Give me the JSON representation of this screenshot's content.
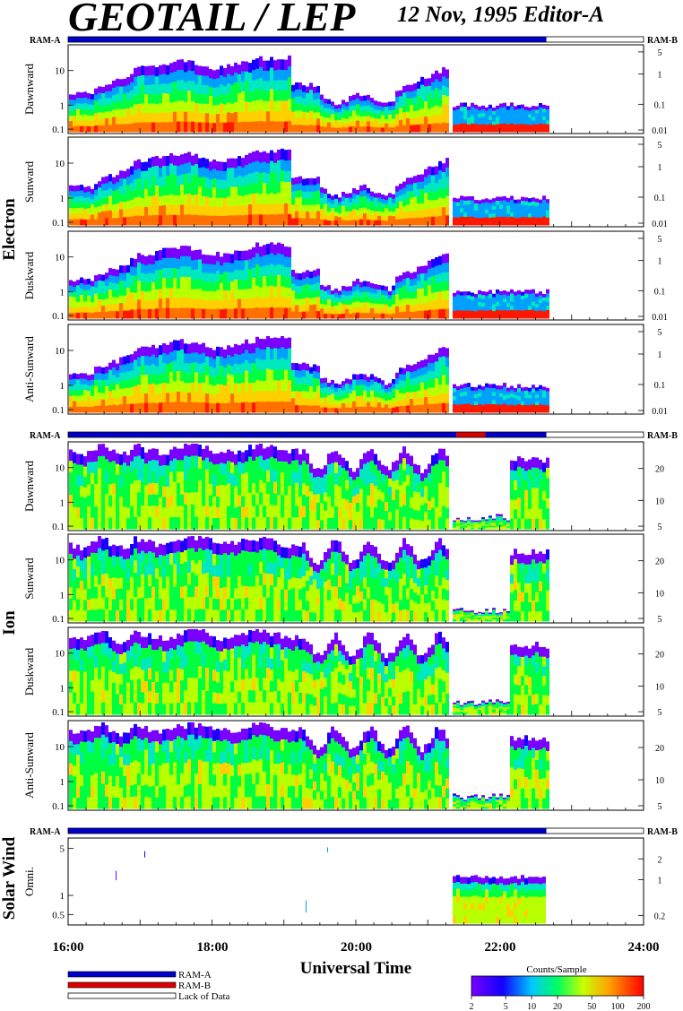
{
  "header": {
    "title": "GEOTAIL / LEP",
    "subtitle": "12 Nov, 1995   Editor-A"
  },
  "status_labels": {
    "ram_a": "RAM-A",
    "ram_b": "RAM-B"
  },
  "legend": {
    "ram_a": "RAM-A",
    "ram_b": "RAM-B",
    "lack": "Lack of Data"
  },
  "colorbar": {
    "title": "Counts/Sample",
    "ticks": [
      "2",
      "5",
      "10",
      "20",
      "50",
      "100",
      "200"
    ],
    "tick_values": [
      2,
      5,
      10,
      20,
      50,
      100,
      200
    ],
    "range": [
      2,
      200
    ],
    "scale": "log"
  },
  "colors": {
    "ram_a": "#0000cc",
    "ram_b": "#dd0000",
    "lack": "#ffffff"
  },
  "chart_data": {
    "type": "heatmap",
    "x": {
      "label": "Universal Time",
      "ticks": [
        "16:00",
        "18:00",
        "20:00",
        "22:00",
        "24:00"
      ],
      "tick_values": [
        16,
        18,
        20,
        22,
        24
      ],
      "range": [
        16,
        24
      ],
      "data_end": 22.65,
      "gap": [
        21.25,
        21.3
      ]
    },
    "groups": [
      {
        "name": "Electron",
        "panels": [
          {
            "label": "Dawnward",
            "left_ticks": [
              "10",
              "1",
              "0.1"
            ],
            "right_ticks": [
              "5",
              "1",
              "0.1",
              "0.01"
            ]
          },
          {
            "label": "Sunward",
            "left_ticks": [
              "10",
              "1",
              "0.1"
            ],
            "right_ticks": [
              "5",
              "1",
              "0.1",
              "0.01"
            ]
          },
          {
            "label": "Duskward",
            "left_ticks": [
              "10",
              "1",
              "0.1"
            ],
            "right_ticks": [
              "5",
              "1",
              "0.1",
              "0.01"
            ]
          },
          {
            "label": "Anti-Sunward",
            "left_ticks": [
              "10",
              "1",
              "0.1"
            ],
            "right_ticks": [
              "5",
              "1",
              "0.1",
              "0.01"
            ]
          }
        ]
      },
      {
        "name": "Ion",
        "panels": [
          {
            "label": "Dawnward",
            "left_ticks": [
              "10",
              "1",
              "0.1"
            ],
            "right_ticks": [
              "20",
              "10",
              "5"
            ]
          },
          {
            "label": "Sunward",
            "left_ticks": [
              "10",
              "1",
              "0.1"
            ],
            "right_ticks": [
              "20",
              "10",
              "5"
            ]
          },
          {
            "label": "Duskward",
            "left_ticks": [
              "10",
              "1",
              "0.1"
            ],
            "right_ticks": [
              "20",
              "10",
              "5"
            ]
          },
          {
            "label": "Anti-Sunward",
            "left_ticks": [
              "10",
              "1",
              "0.1"
            ],
            "right_ticks": [
              "20",
              "10",
              "5"
            ]
          }
        ]
      },
      {
        "name": "Solar Wind",
        "panels": [
          {
            "label": "Omni.",
            "left_ticks": [
              "5",
              "1",
              "0.5"
            ],
            "right_ticks": [
              "2",
              "1",
              "0.2"
            ]
          }
        ]
      }
    ],
    "mode_bars": [
      {
        "segments": [
          {
            "mode": "RAM-A",
            "from": 16,
            "to": 22.65
          },
          {
            "mode": "Lack of Data",
            "from": 22.65,
            "to": 24
          }
        ]
      },
      {
        "segments": [
          {
            "mode": "RAM-A",
            "from": 16,
            "to": 21.4
          },
          {
            "mode": "RAM-B",
            "from": 21.4,
            "to": 21.8
          },
          {
            "mode": "RAM-A",
            "from": 21.8,
            "to": 22.65
          },
          {
            "mode": "Lack of Data",
            "from": 22.65,
            "to": 24
          }
        ]
      },
      {
        "segments": [
          {
            "mode": "RAM-A",
            "from": 16,
            "to": 22.65
          },
          {
            "mode": "Lack of Data",
            "from": 22.65,
            "to": 24
          }
        ]
      }
    ]
  }
}
